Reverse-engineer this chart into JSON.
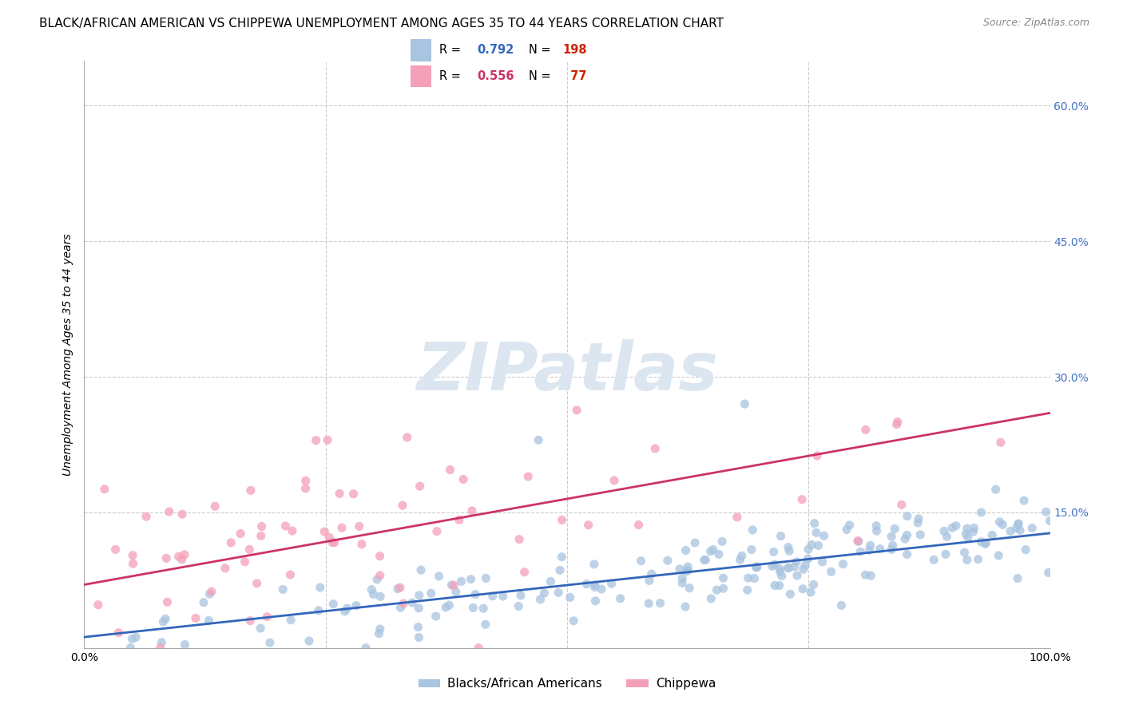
{
  "title": "BLACK/AFRICAN AMERICAN VS CHIPPEWA UNEMPLOYMENT AMONG AGES 35 TO 44 YEARS CORRELATION CHART",
  "source": "Source: ZipAtlas.com",
  "ylabel": "Unemployment Among Ages 35 to 44 years",
  "xlim": [
    0,
    1
  ],
  "ylim": [
    0,
    0.65
  ],
  "yticks": [
    0.0,
    0.15,
    0.3,
    0.45,
    0.6
  ],
  "xticks": [
    0.0,
    0.25,
    0.5,
    0.75,
    1.0
  ],
  "blue_R": 0.792,
  "blue_N": 198,
  "pink_R": 0.556,
  "pink_N": 77,
  "blue_color": "#a8c4e0",
  "pink_color": "#f4a0b8",
  "blue_line_color": "#3366bb",
  "pink_line_color": "#cc3366",
  "blue_N_color": "#cc2200",
  "pink_N_color": "#cc2200",
  "right_tick_color": "#4472c4",
  "legend_blue_label": "Blacks/African Americans",
  "legend_pink_label": "Chippewa",
  "title_fontsize": 11,
  "source_fontsize": 9,
  "axis_label_fontsize": 10,
  "tick_fontsize": 10,
  "legend_fontsize": 11,
  "watermark_text": "ZIPatlas",
  "watermark_color": "#dce6f0",
  "watermark_fontsize": 60,
  "background_color": "#ffffff",
  "grid_color": "#cccccc"
}
